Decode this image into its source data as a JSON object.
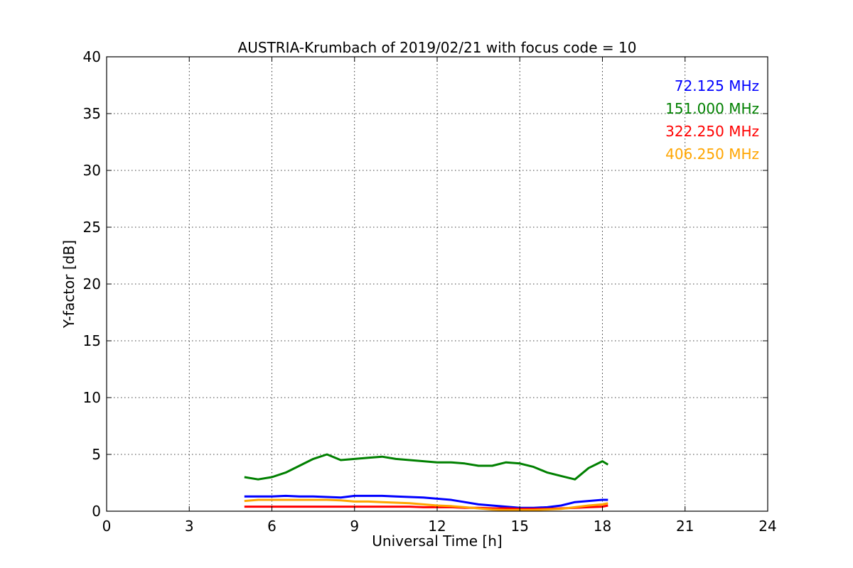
{
  "chart_data": {
    "type": "line",
    "title": "AUSTRIA-Krumbach of 2019/02/21 with focus code = 10",
    "xlabel": "Universal Time [h]",
    "ylabel": "Y-factor [dB]",
    "xlim": [
      0,
      24
    ],
    "ylim": [
      0,
      40
    ],
    "xticks": [
      0,
      3,
      6,
      9,
      12,
      15,
      18,
      21,
      24
    ],
    "yticks": [
      0,
      5,
      10,
      15,
      20,
      25,
      30,
      35,
      40
    ],
    "grid": true,
    "legend_position": "top-right",
    "x": [
      5.0,
      5.5,
      6.0,
      6.5,
      7.0,
      7.5,
      8.0,
      8.5,
      9.0,
      9.5,
      10.0,
      10.5,
      11.0,
      11.5,
      12.0,
      12.5,
      13.0,
      13.5,
      14.0,
      14.5,
      15.0,
      15.5,
      16.0,
      16.5,
      17.0,
      17.5,
      18.0,
      18.2
    ],
    "series": [
      {
        "name": "72.125 MHz",
        "color": "#0000ff",
        "values": [
          1.3,
          1.3,
          1.3,
          1.35,
          1.3,
          1.3,
          1.25,
          1.2,
          1.35,
          1.35,
          1.35,
          1.3,
          1.25,
          1.2,
          1.1,
          1.0,
          0.8,
          0.6,
          0.5,
          0.4,
          0.3,
          0.3,
          0.35,
          0.5,
          0.8,
          0.9,
          1.0,
          1.0
        ]
      },
      {
        "name": "151.000 MHz",
        "color": "#008000",
        "values": [
          3.0,
          2.8,
          3.0,
          3.4,
          4.0,
          4.6,
          5.0,
          4.5,
          4.6,
          4.7,
          4.8,
          4.6,
          4.5,
          4.4,
          4.3,
          4.3,
          4.2,
          4.0,
          4.0,
          4.3,
          4.2,
          3.9,
          3.4,
          3.1,
          2.8,
          3.8,
          4.4,
          4.1
        ]
      },
      {
        "name": "322.250 MHz",
        "color": "#ff0000",
        "values": [
          0.4,
          0.4,
          0.4,
          0.4,
          0.4,
          0.4,
          0.4,
          0.4,
          0.4,
          0.4,
          0.4,
          0.4,
          0.4,
          0.35,
          0.35,
          0.35,
          0.3,
          0.3,
          0.25,
          0.25,
          0.2,
          0.2,
          0.2,
          0.25,
          0.3,
          0.35,
          0.4,
          0.5
        ]
      },
      {
        "name": "406.250 MHz",
        "color": "#ffa500",
        "values": [
          0.9,
          1.0,
          1.0,
          1.0,
          1.0,
          1.0,
          1.0,
          0.95,
          0.85,
          0.85,
          0.8,
          0.75,
          0.7,
          0.6,
          0.5,
          0.45,
          0.35,
          0.25,
          0.15,
          0.1,
          0.1,
          0.1,
          0.15,
          0.2,
          0.35,
          0.5,
          0.6,
          0.7
        ]
      }
    ]
  }
}
